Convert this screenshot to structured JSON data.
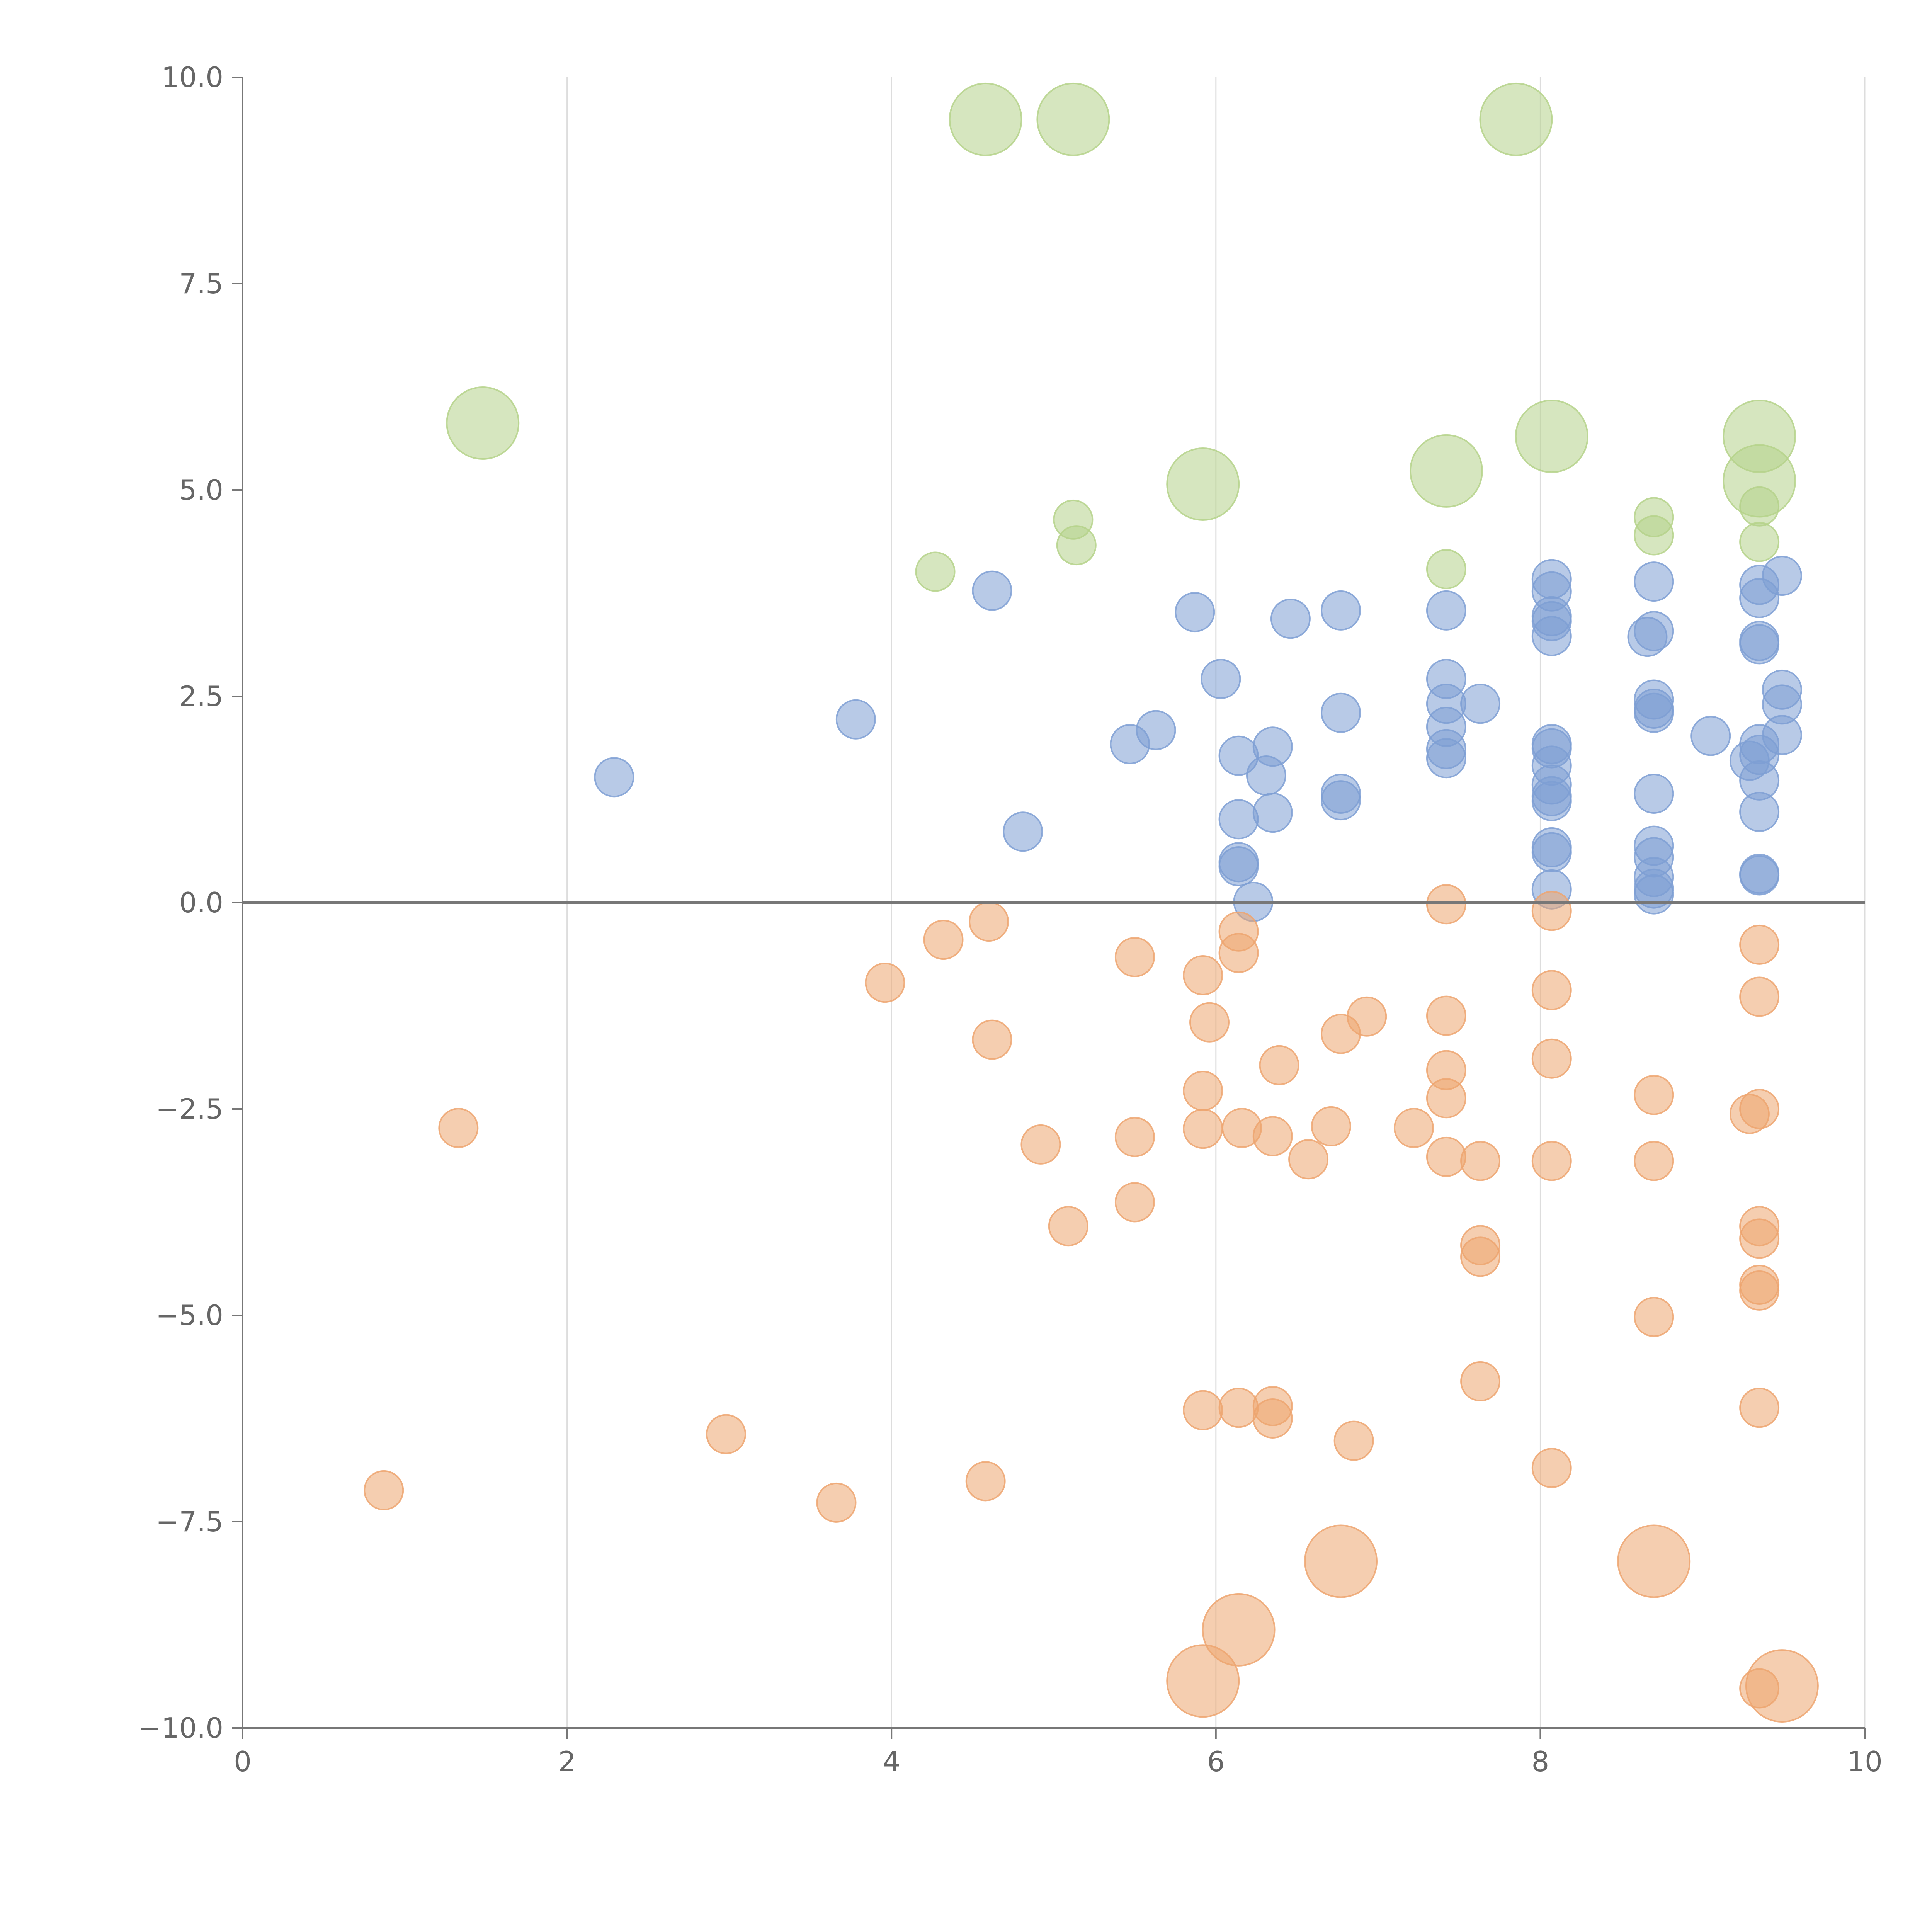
{
  "chart_data": {
    "type": "scatter",
    "title": "",
    "xlabel": "",
    "ylabel": "",
    "xlim": [
      0,
      10
    ],
    "ylim": [
      -10,
      10
    ],
    "x_ticks": [
      "0",
      "2",
      "4",
      "6",
      "8",
      "10"
    ],
    "y_ticks": [
      "−10.0",
      "−7.5",
      "−5.0",
      "−2.5",
      "0.0",
      "2.5",
      "5.0",
      "7.5",
      "10.0"
    ],
    "grid": "vertical",
    "zero_line": true,
    "colors": {
      "blue": "#7e9fd4",
      "orange": "#eda570",
      "green": "#b5d28a"
    },
    "series": [
      {
        "name": "blue",
        "color": "#7e9fd4",
        "size": 1,
        "points": [
          [
            2.29,
            1.52
          ],
          [
            3.78,
            2.22
          ],
          [
            4.62,
            3.78
          ],
          [
            4.81,
            0.86
          ],
          [
            5.47,
            1.92
          ],
          [
            5.63,
            2.09
          ],
          [
            5.87,
            3.52
          ],
          [
            6.03,
            2.71
          ],
          [
            6.14,
            1.78
          ],
          [
            6.14,
            1.01
          ],
          [
            6.14,
            0.49
          ],
          [
            6.14,
            0.44
          ],
          [
            6.23,
            0.01
          ],
          [
            6.31,
            1.54
          ],
          [
            6.35,
            1.89
          ],
          [
            6.35,
            1.09
          ],
          [
            6.46,
            3.44
          ],
          [
            6.77,
            3.54
          ],
          [
            6.77,
            2.3
          ],
          [
            6.77,
            1.32
          ],
          [
            6.77,
            1.24
          ],
          [
            7.42,
            3.54
          ],
          [
            7.42,
            2.71
          ],
          [
            7.42,
            2.41
          ],
          [
            7.42,
            2.13
          ],
          [
            7.42,
            1.86
          ],
          [
            7.42,
            1.75
          ],
          [
            7.63,
            2.41
          ],
          [
            8.07,
            3.92
          ],
          [
            8.07,
            3.77
          ],
          [
            8.07,
            3.47
          ],
          [
            8.07,
            3.41
          ],
          [
            8.07,
            3.23
          ],
          [
            8.07,
            1.92
          ],
          [
            8.07,
            1.87
          ],
          [
            8.07,
            1.66
          ],
          [
            8.07,
            1.43
          ],
          [
            8.07,
            1.29
          ],
          [
            8.07,
            1.23
          ],
          [
            8.07,
            0.67
          ],
          [
            8.07,
            0.61
          ],
          [
            8.07,
            0.16
          ],
          [
            8.66,
            3.22
          ],
          [
            8.7,
            3.89
          ],
          [
            8.7,
            3.29
          ],
          [
            8.7,
            2.46
          ],
          [
            8.7,
            2.35
          ],
          [
            8.7,
            2.3
          ],
          [
            8.7,
            1.32
          ],
          [
            8.7,
            0.69
          ],
          [
            8.7,
            0.55
          ],
          [
            8.7,
            0.31
          ],
          [
            8.7,
            0.17
          ],
          [
            8.7,
            0.1
          ],
          [
            9.05,
            2.02
          ],
          [
            9.35,
            3.85
          ],
          [
            9.35,
            3.69
          ],
          [
            9.35,
            3.17
          ],
          [
            9.35,
            3.13
          ],
          [
            9.35,
            1.92
          ],
          [
            9.35,
            1.79
          ],
          [
            9.35,
            1.48
          ],
          [
            9.35,
            1.1
          ],
          [
            9.35,
            0.35
          ],
          [
            9.35,
            0.33
          ],
          [
            9.29,
            1.72
          ],
          [
            9.49,
            3.96
          ],
          [
            9.49,
            2.58
          ],
          [
            9.49,
            2.4
          ],
          [
            9.49,
            2.03
          ]
        ]
      },
      {
        "name": "orange",
        "color": "#eda570",
        "size": 1,
        "points": [
          [
            0.87,
            -7.12
          ],
          [
            1.33,
            -2.73
          ],
          [
            2.98,
            -6.44
          ],
          [
            3.66,
            -7.27
          ],
          [
            3.96,
            -0.97
          ],
          [
            4.32,
            -0.45
          ],
          [
            4.6,
            -0.23
          ],
          [
            4.62,
            -1.66
          ],
          [
            4.58,
            -7.01
          ],
          [
            4.92,
            -2.93
          ],
          [
            5.09,
            -3.92
          ],
          [
            5.5,
            -0.66
          ],
          [
            5.5,
            -2.84
          ],
          [
            5.5,
            -3.63
          ],
          [
            5.92,
            -0.88
          ],
          [
            5.96,
            -1.45
          ],
          [
            5.92,
            -2.28
          ],
          [
            5.92,
            -2.74
          ],
          [
            5.92,
            -6.15
          ],
          [
            6.14,
            -0.35
          ],
          [
            6.14,
            -0.61
          ],
          [
            6.16,
            -2.73
          ],
          [
            6.14,
            -6.12
          ],
          [
            6.35,
            -6.1
          ],
          [
            6.35,
            -6.25
          ],
          [
            6.35,
            -2.83
          ],
          [
            6.39,
            -1.97
          ],
          [
            6.57,
            -3.11
          ],
          [
            6.71,
            -2.71
          ],
          [
            6.77,
            -1.59
          ],
          [
            6.93,
            -1.38
          ],
          [
            6.85,
            -6.52
          ],
          [
            7.22,
            -2.73
          ],
          [
            7.42,
            -0.02
          ],
          [
            7.42,
            -1.37
          ],
          [
            7.42,
            -2.03
          ],
          [
            7.42,
            -2.37
          ],
          [
            7.42,
            -3.08
          ],
          [
            7.63,
            -3.13
          ],
          [
            7.63,
            -4.15
          ],
          [
            7.63,
            -4.29
          ],
          [
            7.63,
            -5.8
          ],
          [
            8.07,
            -0.1
          ],
          [
            8.07,
            -1.06
          ],
          [
            8.07,
            -1.89
          ],
          [
            8.07,
            -3.13
          ],
          [
            8.07,
            -6.85
          ],
          [
            8.7,
            -2.33
          ],
          [
            8.7,
            -3.13
          ],
          [
            8.7,
            -5.02
          ],
          [
            9.29,
            -2.56
          ],
          [
            9.35,
            -0.51
          ],
          [
            9.35,
            -1.14
          ],
          [
            9.35,
            -2.5
          ],
          [
            9.35,
            -3.92
          ],
          [
            9.35,
            -4.07
          ],
          [
            9.35,
            -4.63
          ],
          [
            9.35,
            -4.7
          ],
          [
            9.35,
            -6.12
          ],
          [
            9.35,
            -9.52
          ]
        ]
      },
      {
        "name": "orange-large",
        "color": "#eda570",
        "size": 2,
        "points": [
          [
            6.77,
            -7.98
          ],
          [
            8.7,
            -7.98
          ],
          [
            6.14,
            -8.81
          ],
          [
            5.92,
            -9.43
          ],
          [
            9.49,
            -9.49
          ]
        ]
      },
      {
        "name": "green",
        "color": "#b5d28a",
        "size": 1,
        "points": [
          [
            4.27,
            4.01
          ],
          [
            5.12,
            4.64
          ],
          [
            5.14,
            4.33
          ],
          [
            7.42,
            4.04
          ],
          [
            8.7,
            4.67
          ],
          [
            8.7,
            4.45
          ],
          [
            9.35,
            4.8
          ],
          [
            9.35,
            4.37
          ]
        ]
      },
      {
        "name": "green-large",
        "color": "#b5d28a",
        "size": 2,
        "points": [
          [
            4.58,
            9.49
          ],
          [
            5.12,
            9.49
          ],
          [
            7.85,
            9.49
          ],
          [
            1.48,
            5.81
          ],
          [
            5.92,
            5.07
          ],
          [
            7.42,
            5.23
          ],
          [
            8.07,
            5.65
          ],
          [
            9.35,
            5.65
          ],
          [
            9.35,
            5.11
          ]
        ]
      }
    ]
  }
}
